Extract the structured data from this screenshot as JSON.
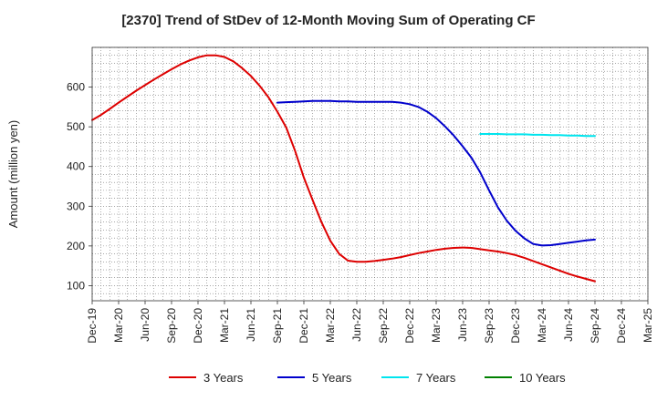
{
  "chart_data": {
    "type": "line",
    "title": "[2370]  Trend of StDev of 12-Month Moving Sum of Operating CF",
    "xlabel": "",
    "ylabel": "Amount (million yen)",
    "ylim": [
      62,
      700
    ],
    "yticks": [
      100,
      200,
      300,
      400,
      500,
      600
    ],
    "xticks": [
      "Dec-19",
      "Mar-20",
      "Jun-20",
      "Sep-20",
      "Dec-20",
      "Mar-21",
      "Jun-21",
      "Sep-21",
      "Dec-21",
      "Mar-22",
      "Jun-22",
      "Sep-22",
      "Dec-22",
      "Mar-23",
      "Jun-23",
      "Sep-23",
      "Dec-23",
      "Mar-24",
      "Jun-24",
      "Sep-24",
      "Dec-24",
      "Mar-25"
    ],
    "grid": true,
    "legend_position": "bottom",
    "series": [
      {
        "name": "3 Years",
        "color": "#dd0000",
        "x": [
          "Dec-19",
          "Jan-20",
          "Feb-20",
          "Mar-20",
          "Apr-20",
          "May-20",
          "Jun-20",
          "Jul-20",
          "Aug-20",
          "Sep-20",
          "Oct-20",
          "Nov-20",
          "Dec-20",
          "Jan-21",
          "Feb-21",
          "Mar-21",
          "Apr-21",
          "May-21",
          "Jun-21",
          "Jul-21",
          "Aug-21",
          "Sep-21",
          "Oct-21",
          "Nov-21",
          "Dec-21",
          "Jan-22",
          "Feb-22",
          "Mar-22",
          "Apr-22",
          "May-22",
          "Jun-22",
          "Jul-22",
          "Aug-22",
          "Sep-22",
          "Oct-22",
          "Nov-22",
          "Dec-22",
          "Jan-23",
          "Feb-23",
          "Mar-23",
          "Apr-23",
          "May-23",
          "Jun-23",
          "Jul-23",
          "Aug-23",
          "Sep-23",
          "Oct-23",
          "Nov-23",
          "Dec-23",
          "Jan-24",
          "Feb-24",
          "Mar-24",
          "Apr-24",
          "May-24",
          "Jun-24",
          "Jul-24",
          "Aug-24",
          "Sep-24"
        ],
        "values": [
          517,
          530,
          545,
          561,
          576,
          591,
          605,
          619,
          632,
          645,
          657,
          667,
          675,
          680,
          680,
          676,
          665,
          648,
          628,
          603,
          574,
          538,
          498,
          440,
          372,
          315,
          260,
          213,
          180,
          163,
          160,
          160,
          162,
          165,
          168,
          172,
          177,
          182,
          186,
          190,
          193,
          195,
          196,
          195,
          192,
          189,
          186,
          182,
          177,
          170,
          162,
          154,
          146,
          138,
          130,
          123,
          117,
          111
        ]
      },
      {
        "name": "5 Years",
        "color": "#0000cc",
        "x": [
          "Sep-21",
          "Oct-21",
          "Nov-21",
          "Dec-21",
          "Jan-22",
          "Feb-22",
          "Mar-22",
          "Apr-22",
          "May-22",
          "Jun-22",
          "Jul-22",
          "Aug-22",
          "Sep-22",
          "Oct-22",
          "Nov-22",
          "Dec-22",
          "Jan-23",
          "Feb-23",
          "Mar-23",
          "Apr-23",
          "May-23",
          "Jun-23",
          "Jul-23",
          "Aug-23",
          "Sep-23",
          "Oct-23",
          "Nov-23",
          "Dec-23",
          "Jan-24",
          "Feb-24",
          "Mar-24",
          "Apr-24",
          "May-24",
          "Jun-24",
          "Jul-24",
          "Aug-24",
          "Sep-24"
        ],
        "values": [
          561,
          562,
          563,
          564,
          565,
          565,
          565,
          564,
          564,
          563,
          563,
          563,
          563,
          563,
          561,
          557,
          550,
          538,
          522,
          501,
          478,
          451,
          422,
          385,
          340,
          297,
          264,
          238,
          219,
          205,
          201,
          202,
          205,
          208,
          211,
          214,
          216
        ]
      },
      {
        "name": "7 Years",
        "color": "#00e5ee",
        "x": [
          "Aug-23",
          "Sep-23",
          "Oct-23",
          "Nov-23",
          "Dec-23",
          "Jan-24",
          "Feb-24",
          "Mar-24",
          "Apr-24",
          "May-24",
          "Jun-24",
          "Jul-24",
          "Aug-24",
          "Sep-24"
        ],
        "values": [
          482,
          482,
          482,
          481,
          481,
          481,
          480,
          480,
          479,
          479,
          478,
          478,
          477,
          477
        ]
      },
      {
        "name": "10 Years",
        "color": "#008000",
        "x": [],
        "values": []
      }
    ]
  }
}
